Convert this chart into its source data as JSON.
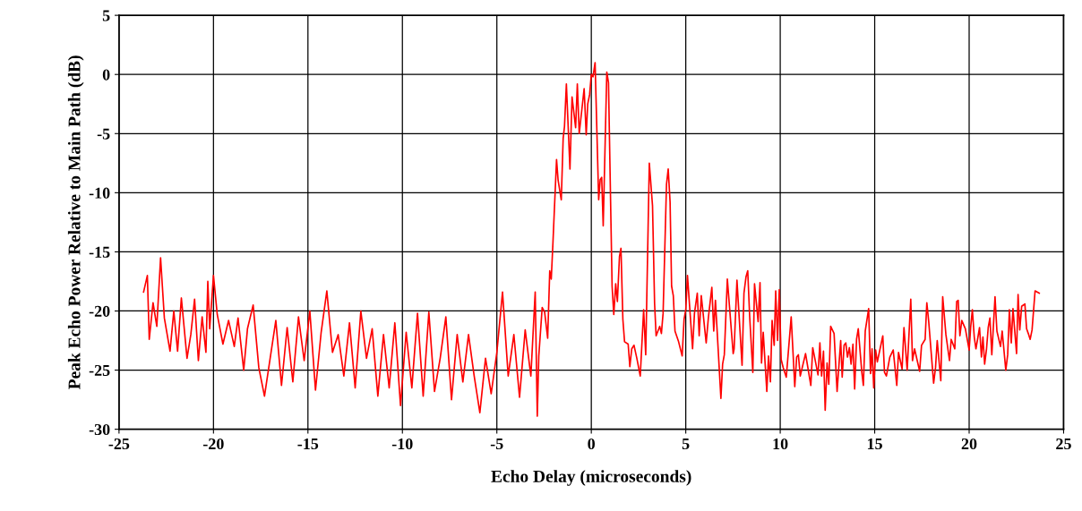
{
  "chart_data": {
    "type": "line",
    "xlabel": "Echo Delay (microseconds)",
    "ylabel": "Peak Echo Power Relative to Main Path (dB)",
    "xlim": [
      -25,
      25
    ],
    "xticks": [
      -25,
      -20,
      -15,
      -10,
      -5,
      0,
      5,
      10,
      15,
      20,
      25
    ],
    "ylim": [
      -30,
      5
    ],
    "yticks": [
      -30,
      -25,
      -20,
      -15,
      -10,
      -5,
      0,
      5
    ],
    "grid": true,
    "marker": "none",
    "line_style": "solid",
    "series": [
      {
        "color": "#ff0000",
        "x": [
          -23.7,
          -23.5,
          -23.4,
          -23.2,
          -23,
          -22.8,
          -22.6,
          -22.3,
          -22.1,
          -21.9,
          -21.7,
          -21.4,
          -21.2,
          -21,
          -20.8,
          -20.6,
          -20.4,
          -20.3,
          -20.2,
          -20,
          -19.8,
          -19.5,
          -19.2,
          -18.9,
          -18.7,
          -18.4,
          -18.2,
          -17.9,
          -17.6,
          -17.3,
          -17,
          -16.7,
          -16.4,
          -16.1,
          -15.8,
          -15.5,
          -15.2,
          -14.9,
          -14.6,
          -14.3,
          -14,
          -13.7,
          -13.4,
          -13.1,
          -12.8,
          -12.5,
          -12.2,
          -11.9,
          -11.6,
          -11.3,
          -11,
          -10.7,
          -10.4,
          -10.1,
          -9.8,
          -9.5,
          -9.2,
          -8.9,
          -8.6,
          -8.3,
          -8,
          -7.7,
          -7.4,
          -7.1,
          -6.8,
          -6.5,
          -6.2,
          -5.9,
          -5.6,
          -5.3,
          -5,
          -4.7,
          -4.4,
          -4.1,
          -3.8,
          -3.5,
          -3.2,
          -2.97,
          -2.86,
          -2.78,
          -2.6,
          -2.47,
          -2.31,
          -2.2,
          -2.12,
          -2.03,
          -1.84,
          -1.76,
          -1.59,
          -1.49,
          -1.42,
          -1.32,
          -1.13,
          -1.02,
          -0.83,
          -0.74,
          -0.64,
          -0.38,
          -0.27,
          -0.19,
          -0.09,
          0,
          0.09,
          0.2,
          0.39,
          0.47,
          0.55,
          0.63,
          0.82,
          0.91,
          1.1,
          1.19,
          1.29,
          1.38,
          1.49,
          1.57,
          1.67,
          1.76,
          1.95,
          2.04,
          2.14,
          2.26,
          2.41,
          2.59,
          2.77,
          2.88,
          3.07,
          3.24,
          3.35,
          3.43,
          3.62,
          3.71,
          3.8,
          3.98,
          4.07,
          4.17,
          4.25,
          4.34,
          4.43,
          4.62,
          4.81,
          4.91,
          5.0,
          5.09,
          5.36,
          5.46,
          5.61,
          5.71,
          5.82,
          6.08,
          6.2,
          6.38,
          6.48,
          6.57,
          6.86,
          6.95,
          7.04,
          7.2,
          7.51,
          7.56,
          7.71,
          7.98,
          8.08,
          8.19,
          8.28,
          8.38,
          8.55,
          8.64,
          8.83,
          8.93,
          9.01,
          9.1,
          9.29,
          9.38,
          9.48,
          9.57,
          9.68,
          9.76,
          9.86,
          9.95,
          10.05,
          10.16,
          10.32,
          10.58,
          10.77,
          10.87,
          10.96,
          11.06,
          11.34,
          11.62,
          11.72,
          12.0,
          12.1,
          12.19,
          12.29,
          12.38,
          12.48,
          12.57,
          12.67,
          12.85,
          13.01,
          13.2,
          13.28,
          13.38,
          13.47,
          13.56,
          13.66,
          13.75,
          13.85,
          13.94,
          14.04,
          14.13,
          14.32,
          14.4,
          14.5,
          14.68,
          14.78,
          14.86,
          14.95,
          15.05,
          15.14,
          15.43,
          15.52,
          15.62,
          15.8,
          15.98,
          16.17,
          16.26,
          16.45,
          16.55,
          16.72,
          16.91,
          17.0,
          17.11,
          17.38,
          17.48,
          17.67,
          17.76,
          17.86,
          18.12,
          18.22,
          18.31,
          18.5,
          18.6,
          18.77,
          18.96,
          19.05,
          19.24,
          19.34,
          19.42,
          19.51,
          19.61,
          19.8,
          20.0,
          20.08,
          20.17,
          20.27,
          20.36,
          20.55,
          20.65,
          20.73,
          20.82,
          20.92,
          21.01,
          21.1,
          21.2,
          21.37,
          21.47,
          21.66,
          21.75,
          21.94,
          22.04,
          22.13,
          22.23,
          22.32,
          22.51,
          22.59,
          22.68,
          22.78,
          22.95,
          23.04,
          23.13,
          23.23,
          23.33,
          23.49,
          23.71
        ],
        "values": [
          -18.4,
          -17,
          -22.4,
          -19.3,
          -21.3,
          -15.5,
          -20.6,
          -23.4,
          -20,
          -23.4,
          -18.9,
          -24,
          -22,
          -19,
          -24.2,
          -20.5,
          -23.5,
          -17.5,
          -21.5,
          -17,
          -20.3,
          -22.8,
          -20.8,
          -23,
          -20.6,
          -25,
          -21.5,
          -19.5,
          -24.8,
          -27.2,
          -24,
          -20.8,
          -26.3,
          -21.4,
          -26,
          -20.5,
          -24.2,
          -20,
          -26.7,
          -21.8,
          -18.3,
          -23.5,
          -22,
          -25.5,
          -21,
          -26.5,
          -20,
          -24,
          -21.5,
          -27.2,
          -22,
          -26.5,
          -21,
          -28,
          -21.8,
          -26.5,
          -20.2,
          -27.2,
          -20.1,
          -26.8,
          -24,
          -20.5,
          -27.5,
          -22,
          -26,
          -22,
          -25.5,
          -28.6,
          -24,
          -27,
          -23.5,
          -18.4,
          -25.5,
          -22,
          -27.3,
          -21.6,
          -25.5,
          -18.4,
          -28.9,
          -23.8,
          -19.7,
          -20.1,
          -22.3,
          -16.6,
          -17.3,
          -14.2,
          -7.2,
          -8.9,
          -10.6,
          -5.4,
          -4.4,
          -0.8,
          -8.0,
          -1.9,
          -4.5,
          -0.8,
          -5.0,
          -1.2,
          -5.1,
          -2.5,
          -1.7,
          0,
          -0.2,
          1.0,
          -10.6,
          -8.9,
          -8.7,
          -12.8,
          0.2,
          -0.7,
          -17.9,
          -20.3,
          -17.7,
          -19.2,
          -15.4,
          -14.7,
          -20.7,
          -22.6,
          -22.8,
          -24.7,
          -23.2,
          -22.9,
          -24.0,
          -25.5,
          -19.9,
          -23.7,
          -7.5,
          -11.1,
          -19.4,
          -22.1,
          -21.3,
          -21.9,
          -20.2,
          -9.3,
          -8.0,
          -10.8,
          -17.9,
          -18.7,
          -21.7,
          -22.6,
          -23.8,
          -20.7,
          -19.9,
          -17.0,
          -23.2,
          -20.2,
          -18.5,
          -22.1,
          -18.7,
          -22.7,
          -20.5,
          -18.0,
          -21.7,
          -19.1,
          -27.4,
          -24.5,
          -23.7,
          -17.3,
          -23.6,
          -23.2,
          -17.4,
          -24.6,
          -18.5,
          -17.1,
          -16.6,
          -20.4,
          -25.2,
          -17.7,
          -20.9,
          -17.6,
          -24.4,
          -21.8,
          -26.8,
          -23.8,
          -26.0,
          -20.8,
          -22.9,
          -18.3,
          -22.5,
          -18.2,
          -24.1,
          -24.8,
          -25.6,
          -20.5,
          -26.4,
          -23.9,
          -23.7,
          -25.5,
          -23.6,
          -26.3,
          -23.1,
          -25.4,
          -22.7,
          -25.5,
          -23.4,
          -28.4,
          -24.4,
          -26.2,
          -21.3,
          -21.9,
          -26.8,
          -22.5,
          -25.6,
          -22.9,
          -22.7,
          -23.9,
          -23.1,
          -24.5,
          -22.8,
          -26.6,
          -22.4,
          -21.5,
          -25.2,
          -26.3,
          -21.7,
          -19.8,
          -25.3,
          -23.2,
          -26.5,
          -23.3,
          -24.3,
          -22.1,
          -25.2,
          -25.5,
          -23.9,
          -23.3,
          -26.3,
          -23.5,
          -24.9,
          -21.4,
          -25.0,
          -19.0,
          -24.2,
          -23.2,
          -25.1,
          -22.9,
          -22.4,
          -19.3,
          -20.9,
          -26.1,
          -24.8,
          -22.5,
          -25.9,
          -18.8,
          -22.0,
          -24.2,
          -22.4,
          -23.2,
          -19.2,
          -19.1,
          -22.1,
          -20.8,
          -21.5,
          -23.3,
          -21.4,
          -19.9,
          -22.2,
          -23.2,
          -21.4,
          -23.9,
          -22.2,
          -24.5,
          -23.2,
          -21.4,
          -20.6,
          -23.7,
          -18.8,
          -21.7,
          -23.0,
          -21.7,
          -25.0,
          -23.7,
          -19.9,
          -22.7,
          -19.8,
          -23.6,
          -18.6,
          -21.6,
          -19.6,
          -19.4,
          -21.5,
          -21.9,
          -22.4,
          -21.6,
          -18.3,
          -18.5
        ]
      }
    ]
  }
}
